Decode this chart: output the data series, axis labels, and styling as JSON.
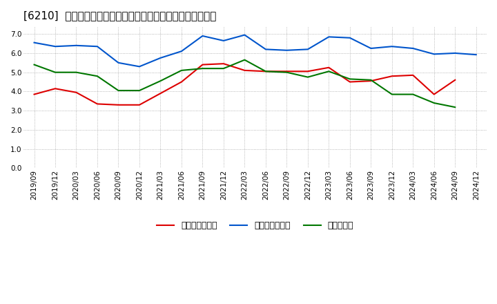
{
  "title": "[6210]  売上債権回転率、買入債務回転率、在庫回転率の推移",
  "x_labels": [
    "2019/09",
    "2019/12",
    "2020/03",
    "2020/06",
    "2020/09",
    "2020/12",
    "2021/03",
    "2021/06",
    "2021/09",
    "2021/12",
    "2022/03",
    "2022/06",
    "2022/09",
    "2022/12",
    "2023/03",
    "2023/06",
    "2023/09",
    "2023/12",
    "2024/03",
    "2024/06",
    "2024/09",
    "2024/12"
  ],
  "売上債権回転率": [
    3.85,
    4.15,
    3.95,
    3.35,
    3.3,
    3.3,
    3.9,
    4.5,
    5.4,
    5.45,
    5.1,
    5.05,
    5.05,
    5.05,
    5.25,
    4.5,
    4.55,
    4.8,
    4.85,
    3.85,
    4.6,
    null
  ],
  "買入債務回転率": [
    6.55,
    6.35,
    6.4,
    6.35,
    5.5,
    5.3,
    5.75,
    6.1,
    6.9,
    6.65,
    6.95,
    6.2,
    6.15,
    6.2,
    6.85,
    6.8,
    6.25,
    6.35,
    6.25,
    5.95,
    6.0,
    5.92
  ],
  "在庫回転率": [
    5.4,
    5.0,
    5.0,
    4.8,
    4.05,
    4.05,
    4.55,
    5.1,
    5.2,
    5.2,
    5.65,
    5.05,
    5.0,
    4.75,
    5.05,
    4.65,
    4.6,
    3.85,
    3.85,
    3.4,
    3.18,
    null
  ],
  "line_colors": {
    "売上債権回転率": "#dd0000",
    "買入債務回転率": "#0055cc",
    "在庫回転率": "#007700"
  },
  "ylim": [
    0.0,
    7.4
  ],
  "yticks": [
    0.0,
    1.0,
    2.0,
    3.0,
    4.0,
    5.0,
    6.0,
    7.0
  ],
  "legend_labels": [
    "売上債権回転率",
    "買入債務回転率",
    "在庫回転率"
  ],
  "background_color": "#ffffff",
  "grid_color": "#999999",
  "title_fontsize": 11,
  "axis_fontsize": 7.5,
  "legend_fontsize": 9
}
